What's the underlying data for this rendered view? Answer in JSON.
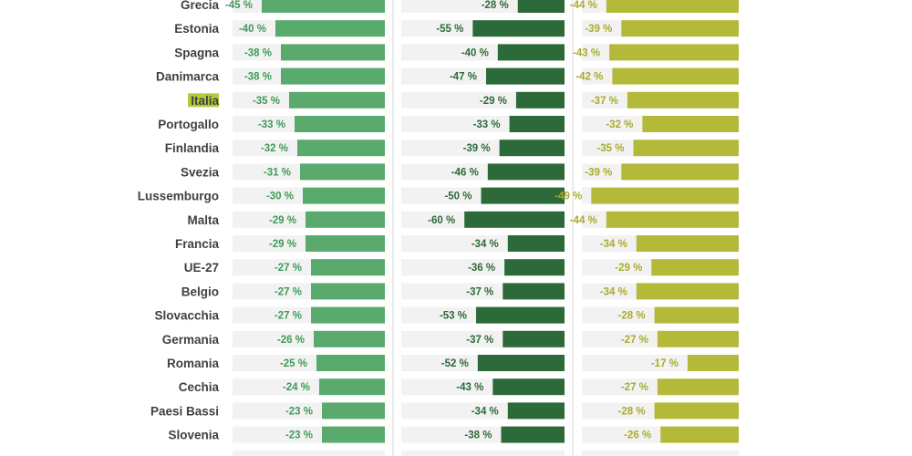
{
  "chart_data": {
    "type": "bar",
    "title": "",
    "categories": [
      "Grecia",
      "Estonia",
      "Spagna",
      "Danimarca",
      "Italia",
      "Portogallo",
      "Finlandia",
      "Svezia",
      "Lussemburgo",
      "Malta",
      "Francia",
      "UE-27",
      "Belgio",
      "Slovacchia",
      "Germania",
      "Romania",
      "Cechia",
      "Paesi Bassi",
      "Slovenia"
    ],
    "highlight_category": "Italia",
    "highlight_color": "#b5c93a",
    "label_suffix": " %",
    "series": [
      {
        "color": "#5aaa6e",
        "label_color": "#3f9a58",
        "max": -60,
        "values": [
          -45,
          -40,
          -38,
          -38,
          -35,
          -33,
          -32,
          -31,
          -30,
          -29,
          -29,
          -27,
          -27,
          -27,
          -26,
          -25,
          -24,
          -23,
          -23
        ]
      },
      {
        "color": "#2d6a39",
        "label_color": "#2d6a39",
        "max": -60,
        "values": [
          -28,
          -55,
          -40,
          -47,
          -29,
          -33,
          -39,
          -46,
          -50,
          -60,
          -34,
          -36,
          -37,
          -53,
          -37,
          -52,
          -43,
          -34,
          -38
        ]
      },
      {
        "color": "#b5b93a",
        "label_color": "#a8ac2c",
        "max": -60,
        "values": [
          -44,
          -39,
          -43,
          -42,
          -37,
          -32,
          -35,
          -39,
          -49,
          -44,
          -34,
          -29,
          -34,
          -28,
          -27,
          -17,
          -27,
          -28,
          -26
        ]
      }
    ],
    "background_color": "#f2f2f2",
    "grid": false,
    "legend": "none"
  }
}
